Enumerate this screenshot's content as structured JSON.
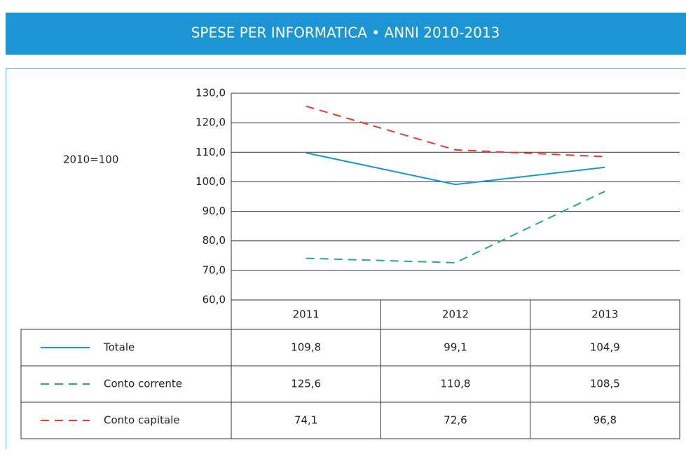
{
  "chart_data": {
    "type": "line",
    "title": "SPESE PER INFORMATICA • ANNI 2010-2013",
    "y_label": "2010=100",
    "categories": [
      "2011",
      "2012",
      "2013"
    ],
    "ylim": [
      60,
      130
    ],
    "yticks": [
      {
        "value": 60,
        "label": "60,0"
      },
      {
        "value": 70,
        "label": "70,0"
      },
      {
        "value": 80,
        "label": "80,0"
      },
      {
        "value": 90,
        "label": "90,0"
      },
      {
        "value": 100,
        "label": "100,0"
      },
      {
        "value": 110,
        "label": "110,0"
      },
      {
        "value": 120,
        "label": "120,0"
      },
      {
        "value": 130,
        "label": "130,0"
      }
    ],
    "grid": true,
    "series": [
      {
        "name": "Totale",
        "color": "#1b95d3",
        "line_color": "#1b95d3",
        "dashed": false,
        "values": [
          109.8,
          99.1,
          104.9
        ],
        "value_labels": [
          "109,8",
          "99,1",
          "104,9"
        ]
      },
      {
        "name": "Conto corrente",
        "color": "#2aaa76",
        "line_color": "#e53a2f",
        "dashed": true,
        "values": [
          125.6,
          110.8,
          108.5
        ],
        "value_labels": [
          "125,6",
          "110,8",
          "108,5"
        ]
      },
      {
        "name": "Conto capitale",
        "color": "#e53a2f",
        "line_color": "#2aaa76",
        "dashed": true,
        "values": [
          74.1,
          72.6,
          96.8
        ],
        "value_labels": [
          "74,1",
          "72,6",
          "96,8"
        ]
      }
    ]
  }
}
